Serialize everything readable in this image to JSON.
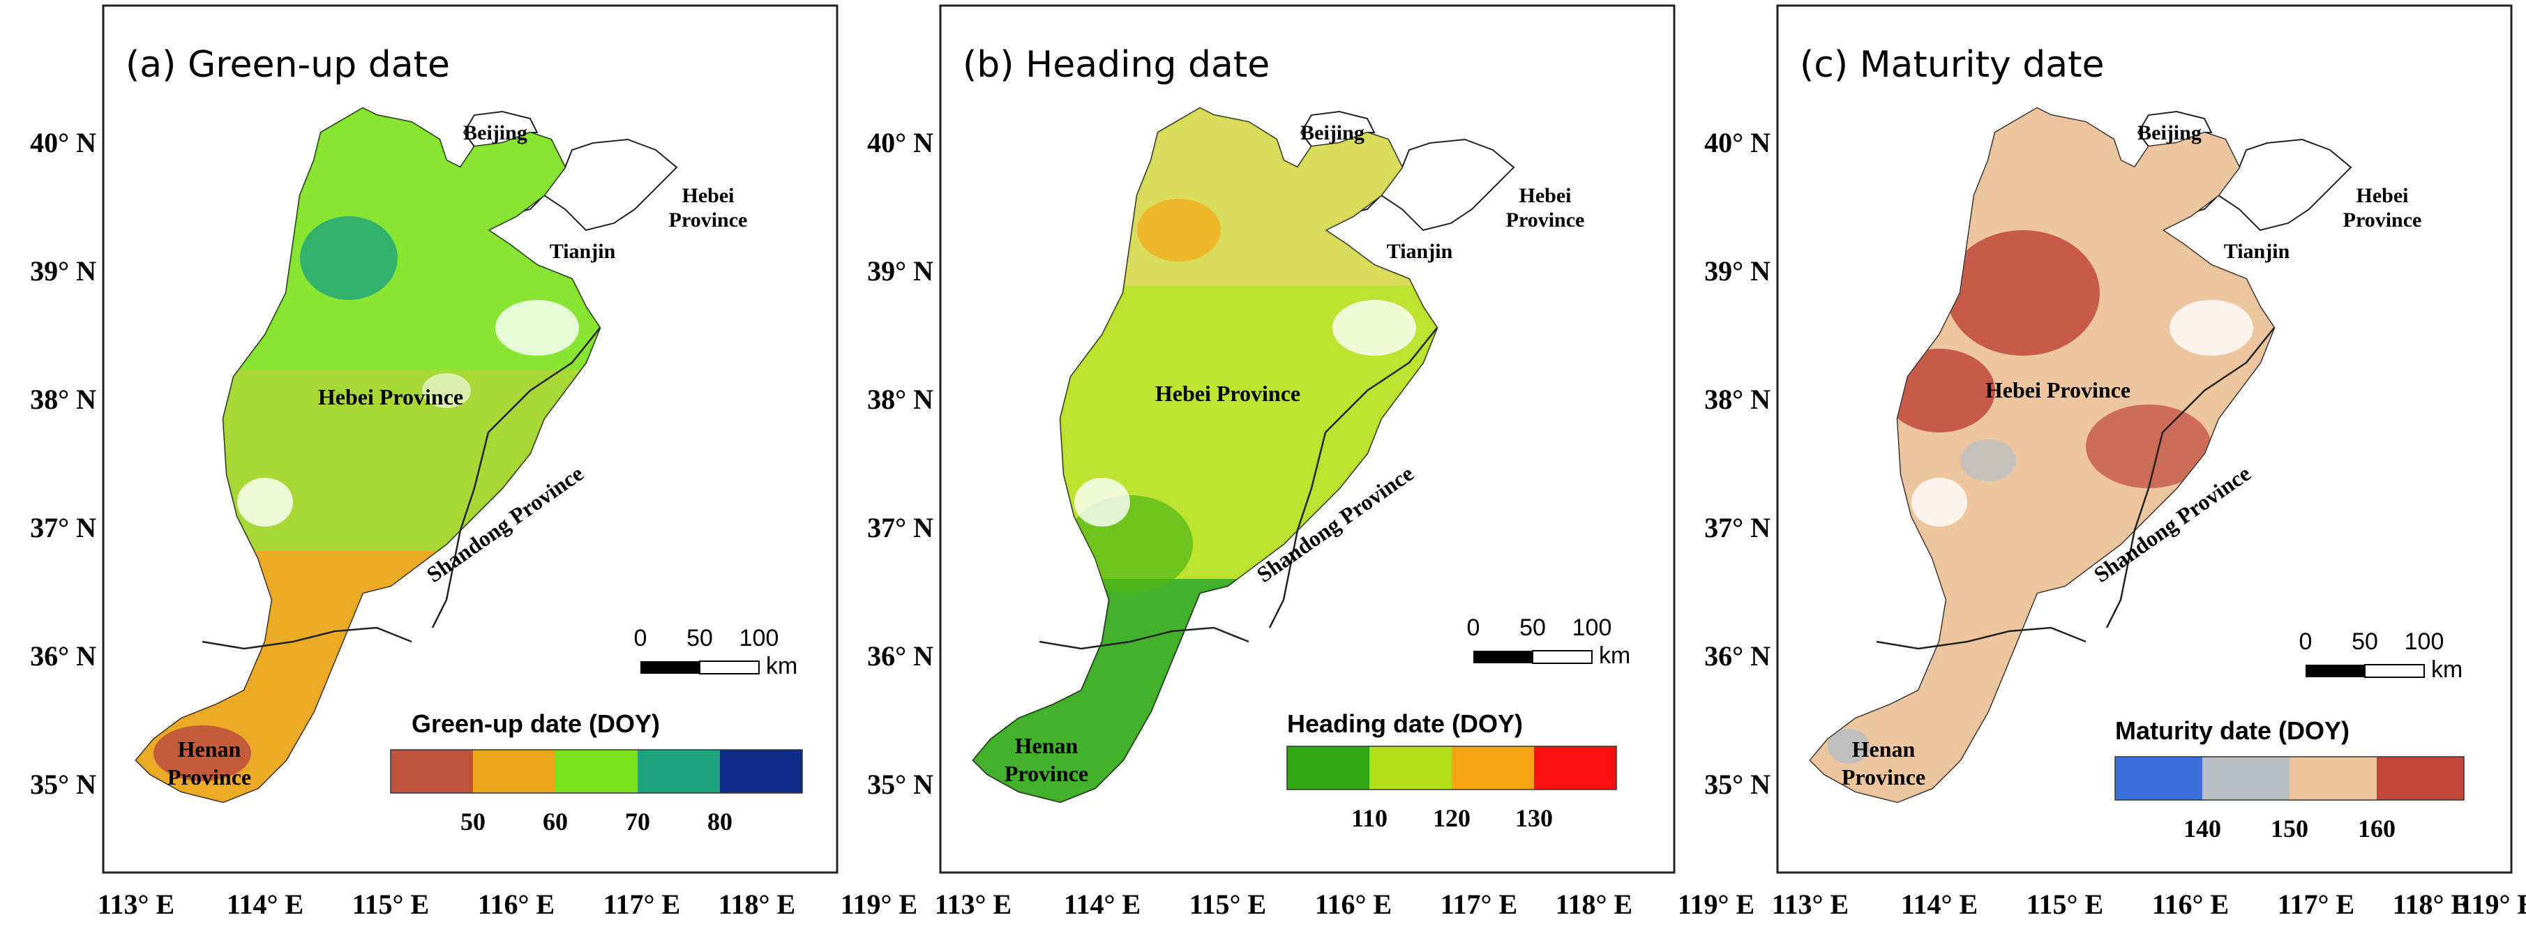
{
  "lat_labels": [
    "40° N",
    "39° N",
    "38° N",
    "37° N",
    "36° N",
    "35° N"
  ],
  "lon_labels": [
    "113° E",
    "114° E",
    "115° E",
    "116° E",
    "117° E",
    "118° E",
    "119° E"
  ],
  "scale": {
    "ticks": [
      "0",
      "50",
      "100"
    ],
    "unit": "km"
  },
  "places": {
    "beijing": "Beijing",
    "tianjin": "Tianjin",
    "hebei_small_1": "Hebei",
    "hebei_small_2": "Province",
    "hebei": "Hebei Province",
    "shandong": "Shandong Province",
    "henan_1": "Henan",
    "henan_2": "Province"
  },
  "panels": [
    {
      "title": "(a) Green-up date",
      "legend_title": "Green-up date (DOY)",
      "legend_colors": [
        "#c0533e",
        "#eba61a",
        "#7be21c",
        "#1da47c",
        "#0e2a86"
      ],
      "legend_ticks": [
        "50",
        "60",
        "70",
        "80"
      ]
    },
    {
      "title": "(b) Heading date",
      "legend_title": "Heading date (DOY)",
      "legend_colors": [
        "#2fa814",
        "#b4e01a",
        "#f6a614",
        "#fc0f0f"
      ],
      "legend_ticks": [
        "110",
        "120",
        "130"
      ]
    },
    {
      "title": "(c) Maturity date",
      "legend_title": "Maturity date (DOY)",
      "legend_colors": [
        "#3d6fd8",
        "#b9bec2",
        "#ecc39b",
        "#bf4639"
      ],
      "legend_ticks": [
        "140",
        "150",
        "160"
      ]
    }
  ]
}
